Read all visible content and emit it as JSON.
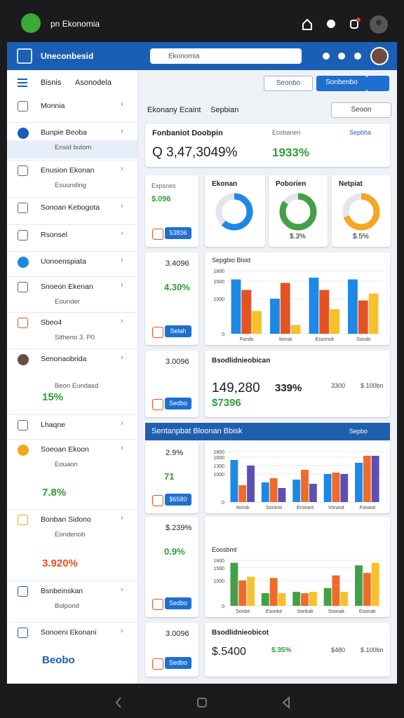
{
  "status_bar": {
    "title": "pn Ekonomia"
  },
  "header": {
    "brand": "Uneconbesid",
    "search": "Ekonomia"
  },
  "sidebar": {
    "tabs": [
      "Bisnis",
      "Asonodela"
    ],
    "items": [
      {
        "label": "Monnia"
      },
      {
        "label": "Bunpie Beoba",
        "sub": "Ensid bulom"
      },
      {
        "label": "Enusion Ekonan",
        "sub": "Esuunding"
      },
      {
        "label": "Sonoan Kebogota"
      },
      {
        "label": "Rsonsel"
      },
      {
        "label": "Uonoenspiata"
      },
      {
        "label": "Snoeon Ekenan",
        "sub": "Eounder"
      },
      {
        "label": "Sbeo4",
        "sub": "Sitheno 3. P0"
      },
      {
        "label": "Senonaobrida",
        "sub": "Beon Eundasd",
        "value": "15%"
      },
      {
        "label": "Lhaqne"
      },
      {
        "label": "Soeoan Ekoon",
        "sub": "Eouaon",
        "value": "7.8%"
      },
      {
        "label": "Bonban Sidono",
        "sub": "Eondenob",
        "value": "3.920%"
      },
      {
        "label": "Bsnbeinskan",
        "sub": "Bolpond"
      },
      {
        "label": "Sonoeni Ekonani",
        "value": "Beobo"
      }
    ]
  },
  "toolbar": {
    "button": "Seonbo",
    "primary": "Sonbenbo"
  },
  "section": {
    "title": "Ekonany Ecaint",
    "subtitle": "Sepbian",
    "filter": "Seoon"
  },
  "summary": {
    "title": "Fonbaniot Doobpin",
    "value": "Q 3,47,3049%",
    "label": "Eosbanen",
    "change": "1933%",
    "link": "Sepbha"
  },
  "stat_cards": [
    {
      "label": "Expsnes",
      "value": "$.096",
      "button": "53836"
    },
    {
      "value": "3.4096",
      "change": "4.30%",
      "button": "Selah"
    },
    {
      "value": "3.0096",
      "button": "Sedbo"
    },
    {
      "value": "2.9%",
      "change": "71",
      "button": "$6580"
    },
    {
      "value": "$.239%",
      "change": "0.9%",
      "button": "Sedbo"
    },
    {
      "value": "3.0096",
      "button": "Sedbo"
    }
  ],
  "donuts": [
    {
      "title": "Ekonan",
      "value": 62,
      "color": "#1e88e5"
    },
    {
      "title": "Poborien",
      "value": 85,
      "color": "#43a047",
      "label": "$.3%"
    },
    {
      "title": "Netpiat",
      "value": 70,
      "color": "#f5a623",
      "label": "$.5%"
    }
  ],
  "charts": [
    {
      "title": "Sepgbio Bisid",
      "categories": [
        "Fonds",
        "Itonsk",
        "Essonsk",
        "Sonde"
      ],
      "ylim": [
        0,
        1800
      ],
      "yticks": [
        0,
        1000,
        1500,
        1800
      ],
      "series": [
        {
          "color": "#1e88e5",
          "values": [
            1550,
            1000,
            1600,
            1550
          ]
        },
        {
          "color": "#e65121",
          "values": [
            1250,
            1450,
            1250,
            950
          ]
        },
        {
          "color": "#f9c02d",
          "values": [
            650,
            250,
            700,
            1150
          ]
        }
      ]
    },
    {
      "categories": [
        "Itonsk",
        "Soninst",
        "Erseant",
        "Vonasit",
        "Fonasit"
      ],
      "ylim": [
        0,
        1800
      ],
      "yticks": [
        0,
        1000,
        1300,
        1600,
        1800
      ],
      "series": [
        {
          "color": "#1e88e5",
          "values": [
            1500,
            700,
            800,
            1000,
            1400
          ]
        },
        {
          "color": "#f06a2a",
          "values": [
            600,
            850,
            1150,
            1050,
            1650
          ]
        },
        {
          "color": "#5c4fb5",
          "values": [
            1300,
            500,
            650,
            1000,
            1650
          ]
        }
      ]
    },
    {
      "title": "Eoosbmt",
      "categories": [
        "Sonbe",
        "Esonke",
        "Sonkak",
        "Ssonak",
        "Eoonak"
      ],
      "ylim": [
        0,
        1800
      ],
      "yticks": [
        0,
        1000,
        1500,
        1800
      ],
      "series": [
        {
          "color": "#43a047",
          "values": [
            1700,
            500,
            550,
            700,
            1600
          ]
        },
        {
          "color": "#f06a2a",
          "values": [
            1000,
            1100,
            500,
            1200,
            1300
          ]
        },
        {
          "color": "#f9c02d",
          "values": [
            1150,
            500,
            550,
            550,
            1700
          ]
        }
      ]
    }
  ],
  "highlights": [
    {
      "title": "Bsodlidnieobican",
      "value": "149,280",
      "sub": "$7396",
      "change": "339%",
      "stats": [
        "3300",
        "$.100bn"
      ]
    },
    {
      "title": "Bsodlidnieobicot",
      "value": "$.5400",
      "change": "$.35%",
      "stats": [
        "$480",
        "$.100bn"
      ]
    }
  ],
  "banner": {
    "title": "Sentanpbat Bloonan Bbisk",
    "link": "Sepbo"
  }
}
